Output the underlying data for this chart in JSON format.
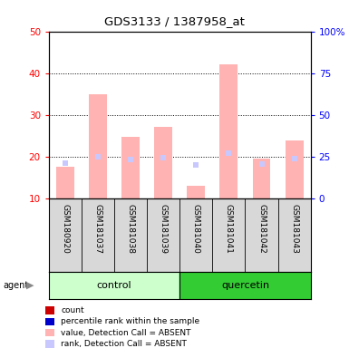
{
  "title": "GDS3133 / 1387958_at",
  "samples": [
    "GSM180920",
    "GSM181037",
    "GSM181038",
    "GSM181039",
    "GSM181040",
    "GSM181041",
    "GSM181042",
    "GSM181043"
  ],
  "absent_value": [
    17.5,
    35.0,
    24.8,
    27.2,
    13.0,
    42.0,
    19.5,
    23.8
  ],
  "absent_rank": [
    21.0,
    25.0,
    23.0,
    24.5,
    20.2,
    27.0,
    20.5,
    24.0
  ],
  "ylim_left": [
    10,
    50
  ],
  "ylim_right": [
    0,
    100
  ],
  "yticks_left": [
    10,
    20,
    30,
    40,
    50
  ],
  "yticks_right": [
    0,
    25,
    50,
    75,
    100
  ],
  "yticklabels_right": [
    "0",
    "25",
    "50",
    "75",
    "100%"
  ],
  "color_absent_value": "#ffb3b3",
  "color_absent_rank": "#c8c8ff",
  "color_control_bg": "#ccffcc",
  "color_quercetin_bg": "#33cc33",
  "bar_width": 0.55,
  "legend_items": [
    "count",
    "percentile rank within the sample",
    "value, Detection Call = ABSENT",
    "rank, Detection Call = ABSENT"
  ],
  "legend_colors": [
    "#cc0000",
    "#0000cc",
    "#ffb3b3",
    "#c8c8ff"
  ]
}
